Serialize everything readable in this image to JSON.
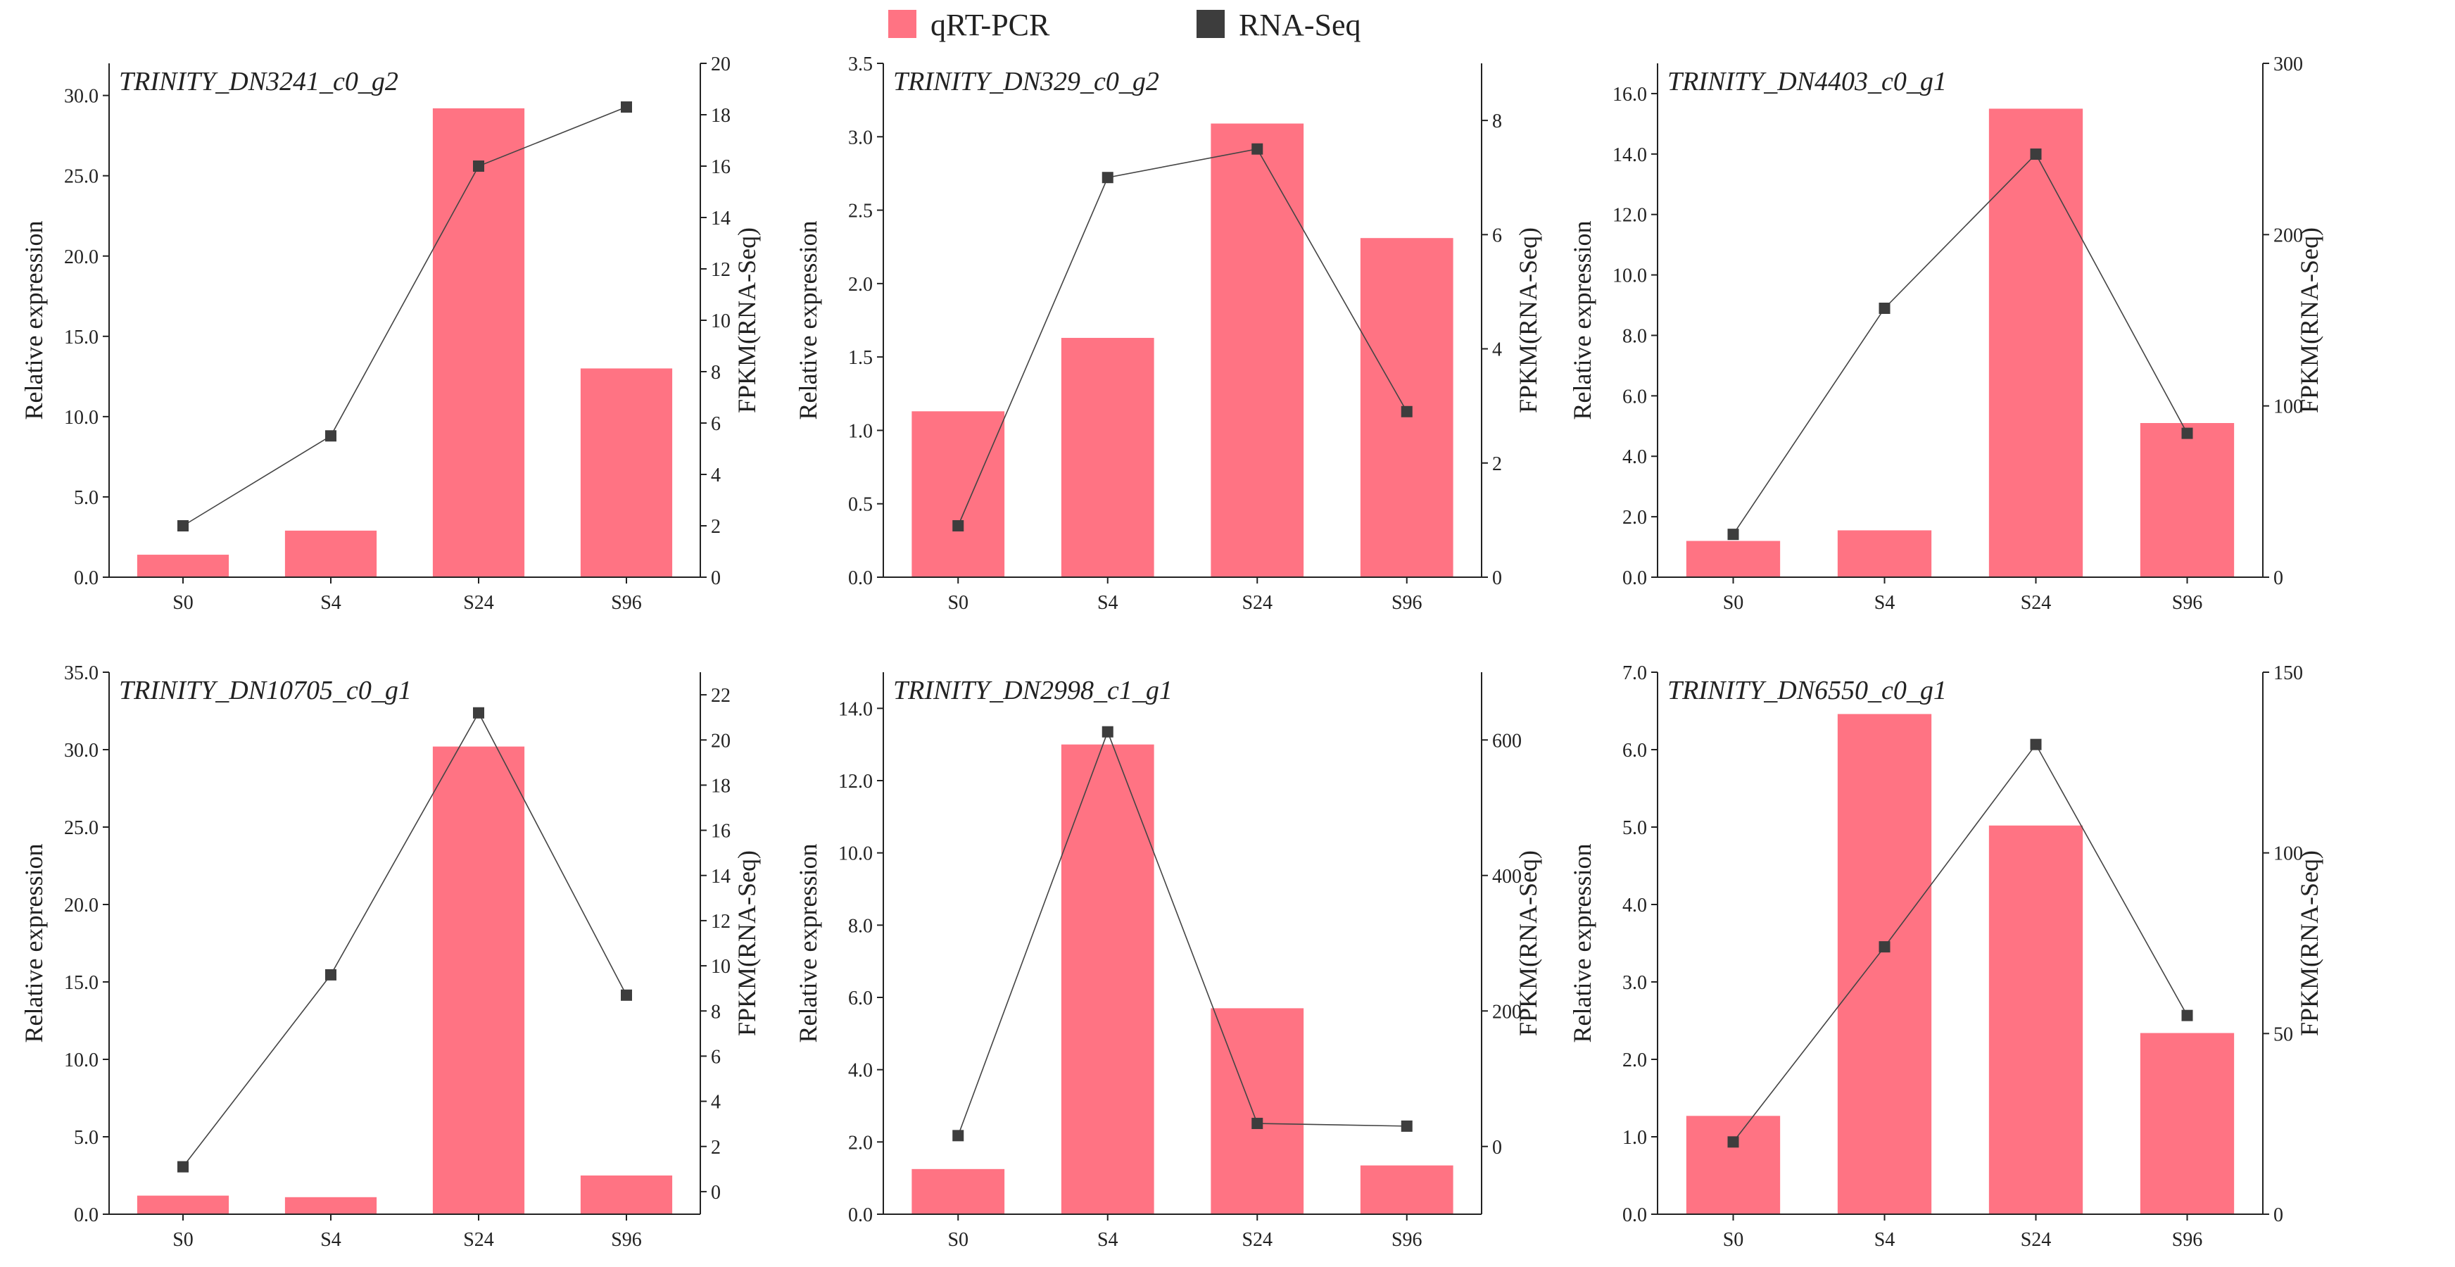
{
  "legend": {
    "bar_label": "qRT-PCR",
    "line_label": "RNA-Seq"
  },
  "colors": {
    "bar": "#ff7383",
    "line": "#444444",
    "marker": "#3d3d3d",
    "axis": "#222222"
  },
  "chart_data": [
    {
      "type": "bar",
      "title": "TRINITY_DN3241_c0_g2",
      "categories": [
        "S0",
        "S4",
        "S24",
        "S96"
      ],
      "ylabel": "Relative expression",
      "y2label": "FPKM(RNA-Seq)",
      "ylim": [
        0,
        32
      ],
      "y2lim": [
        0,
        20
      ],
      "yticks": [
        0,
        5,
        10,
        15,
        20,
        25,
        30
      ],
      "yticklabels": [
        "0.0",
        "5.0",
        "10.0",
        "15.0",
        "20.0",
        "25.0",
        "30.0"
      ],
      "y2ticks": [
        0,
        2,
        4,
        6,
        8,
        10,
        12,
        14,
        16,
        18,
        20
      ],
      "y2ticklabels": [
        "0",
        "2",
        "4",
        "6",
        "8",
        "10",
        "12",
        "14",
        "16",
        "18",
        "20"
      ],
      "series": [
        {
          "name": "qRT-PCR",
          "type": "bar",
          "axis": "left",
          "values": [
            1.4,
            2.9,
            29.2,
            13.0
          ]
        },
        {
          "name": "RNA-Seq",
          "type": "line",
          "axis": "right",
          "values": [
            2.0,
            5.5,
            16.0,
            18.3
          ]
        }
      ]
    },
    {
      "type": "bar",
      "title": "TRINITY_DN329_c0_g2",
      "categories": [
        "S0",
        "S4",
        "S24",
        "S96"
      ],
      "ylabel": "Relative expression",
      "y2label": "FPKM(RNA-Seq)",
      "ylim": [
        0,
        3.5
      ],
      "y2lim": [
        0,
        9
      ],
      "yticks": [
        0,
        0.5,
        1,
        1.5,
        2,
        2.5,
        3,
        3.5
      ],
      "yticklabels": [
        "0.0",
        "0.5",
        "1.0",
        "1.5",
        "2.0",
        "2.5",
        "3.0",
        "3.5"
      ],
      "y2ticks": [
        0,
        2,
        4,
        6,
        8
      ],
      "y2ticklabels": [
        "0",
        "2",
        "4",
        "6",
        "8"
      ],
      "series": [
        {
          "name": "qRT-PCR",
          "type": "bar",
          "axis": "left",
          "values": [
            1.13,
            1.63,
            3.09,
            2.31
          ]
        },
        {
          "name": "RNA-Seq",
          "type": "line",
          "axis": "right",
          "values": [
            0.9,
            7.0,
            7.5,
            2.9
          ]
        }
      ]
    },
    {
      "type": "bar",
      "title": "TRINITY_DN4403_c0_g1",
      "categories": [
        "S0",
        "S4",
        "S24",
        "S96"
      ],
      "ylabel": "Relative expression",
      "y2label": "FPKM(RNA-Seq)",
      "ylim": [
        0,
        17
      ],
      "y2lim": [
        0,
        300
      ],
      "yticks": [
        0,
        2,
        4,
        6,
        8,
        10,
        12,
        14,
        16
      ],
      "yticklabels": [
        "0.0",
        "2.0",
        "4.0",
        "6.0",
        "8.0",
        "10.0",
        "12.0",
        "14.0",
        "16.0"
      ],
      "y2ticks": [
        0,
        100,
        200,
        300
      ],
      "y2ticklabels": [
        "0",
        "100",
        "200",
        "300"
      ],
      "series": [
        {
          "name": "qRT-PCR",
          "type": "bar",
          "axis": "left",
          "values": [
            1.2,
            1.55,
            15.5,
            5.1
          ]
        },
        {
          "name": "RNA-Seq",
          "type": "line",
          "axis": "right",
          "values": [
            25,
            157,
            247,
            84
          ]
        }
      ]
    },
    {
      "type": "bar",
      "title": "TRINITY_DN10705_c0_g1",
      "categories": [
        "S0",
        "S4",
        "S24",
        "S96"
      ],
      "ylabel": "Relative expression",
      "y2label": "FPKM(RNA-Seq)",
      "ylim": [
        0,
        35
      ],
      "y2lim": [
        -1,
        23
      ],
      "yticks": [
        0,
        5,
        10,
        15,
        20,
        25,
        30,
        35
      ],
      "yticklabels": [
        "0.0",
        "5.0",
        "10.0",
        "15.0",
        "20.0",
        "25.0",
        "30.0",
        "35.0"
      ],
      "y2ticks": [
        0,
        2,
        4,
        6,
        8,
        10,
        12,
        14,
        16,
        18,
        20,
        22
      ],
      "y2ticklabels": [
        "0",
        "2",
        "4",
        "6",
        "8",
        "10",
        "12",
        "14",
        "16",
        "18",
        "20",
        "22"
      ],
      "series": [
        {
          "name": "qRT-PCR",
          "type": "bar",
          "axis": "left",
          "values": [
            1.2,
            1.1,
            30.2,
            2.5
          ]
        },
        {
          "name": "RNA-Seq",
          "type": "line",
          "axis": "right",
          "values": [
            1.1,
            9.6,
            21.2,
            8.7
          ]
        }
      ]
    },
    {
      "type": "bar",
      "title": "TRINITY_DN2998_c1_g1",
      "categories": [
        "S0",
        "S4",
        "S24",
        "S96"
      ],
      "ylabel": "Relative expression",
      "y2label": "FPKM(RNA-Seq)",
      "ylim": [
        0,
        15
      ],
      "y2lim": [
        -100,
        700
      ],
      "yticks": [
        0,
        2,
        4,
        6,
        8,
        10,
        12,
        14
      ],
      "yticklabels": [
        "0.0",
        "2.0",
        "4.0",
        "6.0",
        "8.0",
        "10.0",
        "12.0",
        "14.0"
      ],
      "y2ticks": [
        0,
        200,
        400,
        600
      ],
      "y2ticklabels": [
        "0",
        "200",
        "400",
        "600"
      ],
      "series": [
        {
          "name": "qRT-PCR",
          "type": "bar",
          "axis": "left",
          "values": [
            1.25,
            13.0,
            5.7,
            1.35
          ]
        },
        {
          "name": "RNA-Seq",
          "type": "line",
          "axis": "right",
          "values": [
            16,
            612,
            34,
            30
          ]
        }
      ]
    },
    {
      "type": "bar",
      "title": "TRINITY_DN6550_c0_g1",
      "categories": [
        "S0",
        "S4",
        "S24",
        "S96"
      ],
      "ylabel": "Relative expression",
      "y2label": "FPKM(RNA-Seq)",
      "ylim": [
        0,
        7
      ],
      "y2lim": [
        0,
        150
      ],
      "yticks": [
        0,
        1,
        2,
        3,
        4,
        5,
        6,
        7
      ],
      "yticklabels": [
        "0.0",
        "1.0",
        "2.0",
        "3.0",
        "4.0",
        "5.0",
        "6.0",
        "7.0"
      ],
      "y2ticks": [
        0,
        50,
        100,
        150
      ],
      "y2ticklabels": [
        "0",
        "50",
        "100",
        "150"
      ],
      "series": [
        {
          "name": "qRT-PCR",
          "type": "bar",
          "axis": "left",
          "values": [
            1.27,
            6.46,
            5.02,
            2.34
          ]
        },
        {
          "name": "RNA-Seq",
          "type": "line",
          "axis": "right",
          "values": [
            20,
            74,
            130,
            55
          ]
        }
      ]
    }
  ]
}
